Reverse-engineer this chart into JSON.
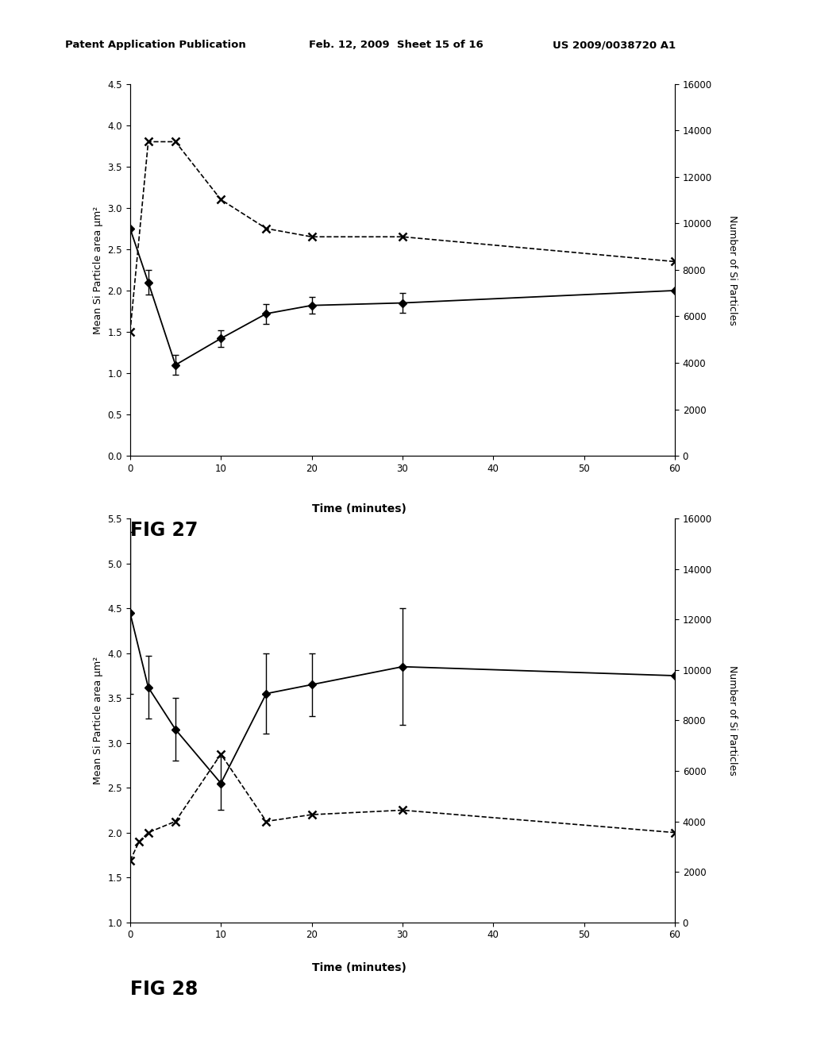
{
  "header_left": "Patent Application Publication",
  "header_mid": "Feb. 12, 2009  Sheet 15 of 16",
  "header_right": "US 2009/0038720 A1",
  "fig27": {
    "fig_label": "FIG 27",
    "xlabel": "Time (minutes)",
    "ylabel_left": "Mean Si Particle area μm²",
    "ylabel_right": "Number of Si Particles",
    "xlim": [
      0,
      60
    ],
    "ylim_left": [
      0,
      4.5
    ],
    "ylim_right": [
      0,
      16000
    ],
    "xticks": [
      0,
      10,
      20,
      30,
      40,
      50,
      60
    ],
    "yticks_left": [
      0,
      0.5,
      1,
      1.5,
      2,
      2.5,
      3,
      3.5,
      4,
      4.5
    ],
    "yticks_right": [
      0,
      2000,
      4000,
      6000,
      8000,
      10000,
      12000,
      14000,
      16000
    ],
    "solid_line": {
      "x": [
        0,
        2,
        5,
        10,
        15,
        20,
        30,
        60
      ],
      "y": [
        2.75,
        2.1,
        1.1,
        1.42,
        1.72,
        1.82,
        1.85,
        2.0
      ],
      "yerr": [
        0.0,
        0.15,
        0.12,
        0.1,
        0.12,
        0.1,
        0.12,
        0.0
      ]
    },
    "dashed_line": {
      "x": [
        0,
        2,
        5,
        10,
        15,
        20,
        30,
        60
      ],
      "y": [
        5333,
        13511,
        13511,
        11022,
        9778,
        9422,
        9422,
        8356
      ]
    }
  },
  "fig28": {
    "fig_label": "FIG 28",
    "xlabel": "Time (minutes)",
    "ylabel_left": "Mean Si Particle area μm²",
    "ylabel_right": "Number of Si Particles",
    "xlim": [
      0,
      60
    ],
    "ylim_left": [
      1,
      5.5
    ],
    "ylim_right": [
      0,
      16000
    ],
    "xticks": [
      0,
      10,
      20,
      30,
      40,
      50,
      60
    ],
    "yticks_left": [
      1,
      1.5,
      2,
      2.5,
      3,
      3.5,
      4,
      4.5,
      5,
      5.5
    ],
    "yticks_right": [
      0,
      2000,
      4000,
      6000,
      8000,
      10000,
      12000,
      14000,
      16000
    ],
    "solid_line": {
      "x": [
        0,
        2,
        5,
        10,
        15,
        20,
        30,
        60
      ],
      "y": [
        4.45,
        3.62,
        3.15,
        2.55,
        3.55,
        3.65,
        3.85,
        3.75
      ],
      "yerr": [
        0.9,
        0.35,
        0.35,
        0.3,
        0.45,
        0.35,
        0.65,
        0.0
      ]
    },
    "dashed_line": {
      "x": [
        0,
        1,
        2,
        5,
        10,
        15,
        20,
        30,
        60
      ],
      "y": [
        2444,
        3200,
        3556,
        4000,
        6667,
        4000,
        4267,
        4444,
        3556
      ]
    }
  }
}
